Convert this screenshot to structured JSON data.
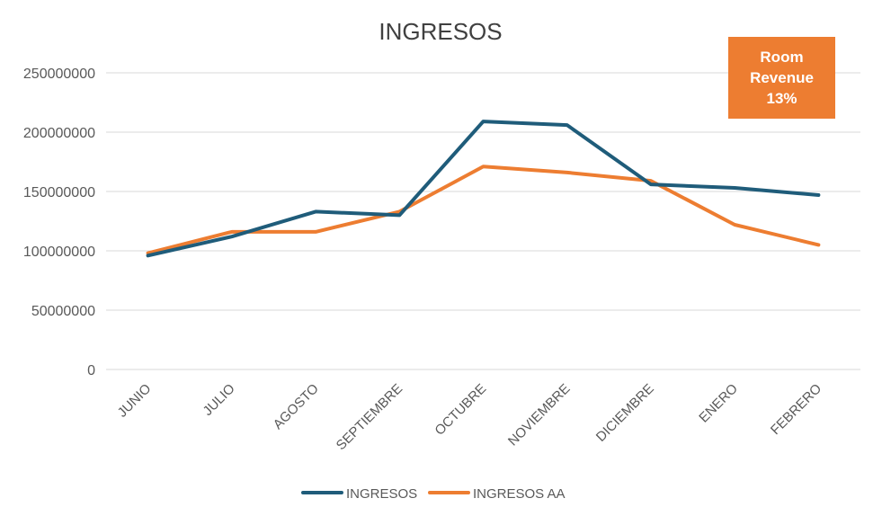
{
  "chart_data": {
    "type": "line",
    "title": "INGRESOS",
    "categories": [
      "JUNIO",
      "JULIO",
      "AGOSTO",
      "SEPTIEMBRE",
      "OCTUBRE",
      "NOVIEMBRE",
      "DICIEMBRE",
      "ENERO",
      "FEBRERO"
    ],
    "series": [
      {
        "name": "INGRESOS",
        "color": "#1F5C7A",
        "values": [
          96000000,
          112000000,
          133000000,
          130000000,
          209000000,
          206000000,
          156000000,
          153000000,
          147000000
        ]
      },
      {
        "name": "INGRESOS AA",
        "color": "#ED7D31",
        "values": [
          98000000,
          116000000,
          116000000,
          133000000,
          171000000,
          166000000,
          159000000,
          122000000,
          105000000
        ]
      }
    ],
    "ylim": [
      0,
      250000000
    ],
    "yticks": [
      0,
      50000000,
      100000000,
      150000000,
      200000000,
      250000000
    ],
    "ytick_labels": [
      "0",
      "50000000",
      "100000000",
      "150000000",
      "200000000",
      "250000000"
    ],
    "xlabel": "",
    "ylabel": "",
    "grid": "horizontal",
    "legend_position": "bottom"
  },
  "callout": {
    "line1": "Room",
    "line2": "Revenue",
    "line3": "13%",
    "color": "#ED7D31"
  }
}
